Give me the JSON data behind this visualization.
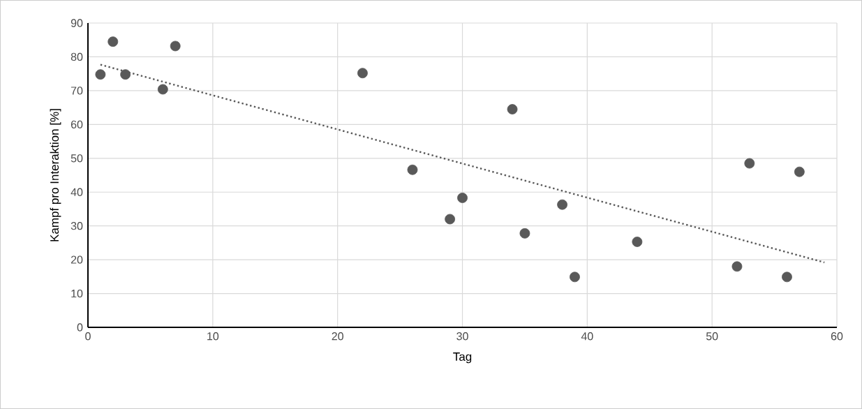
{
  "chart_data": {
    "type": "scatter",
    "xlabel": "Tag",
    "ylabel": "Kampf pro Interaktion [%]",
    "xlim": [
      0,
      60
    ],
    "xticks": [
      0,
      10,
      20,
      30,
      40,
      50,
      60
    ],
    "ylim": [
      0,
      90
    ],
    "yticks": [
      0,
      10,
      20,
      30,
      40,
      50,
      60,
      70,
      80,
      90
    ],
    "grid": true,
    "series": [
      {
        "color": "#595959",
        "marker": "circle",
        "x": [
          1,
          2,
          3,
          6,
          7,
          22,
          26,
          29,
          30,
          34,
          35,
          38,
          39,
          44,
          52,
          53,
          56,
          57
        ],
        "values": [
          74.8,
          84.5,
          74.8,
          70.4,
          83.2,
          75.2,
          46.6,
          32,
          38.3,
          64.5,
          27.8,
          36.3,
          14.9,
          25.3,
          18,
          48.5,
          14.9,
          46
        ]
      },
      {
        "type": "line",
        "color": "#595959",
        "line_style": "dotted",
        "marker": "none",
        "x": [
          1,
          59
        ],
        "values": [
          77.7,
          19.2
        ]
      }
    ]
  }
}
